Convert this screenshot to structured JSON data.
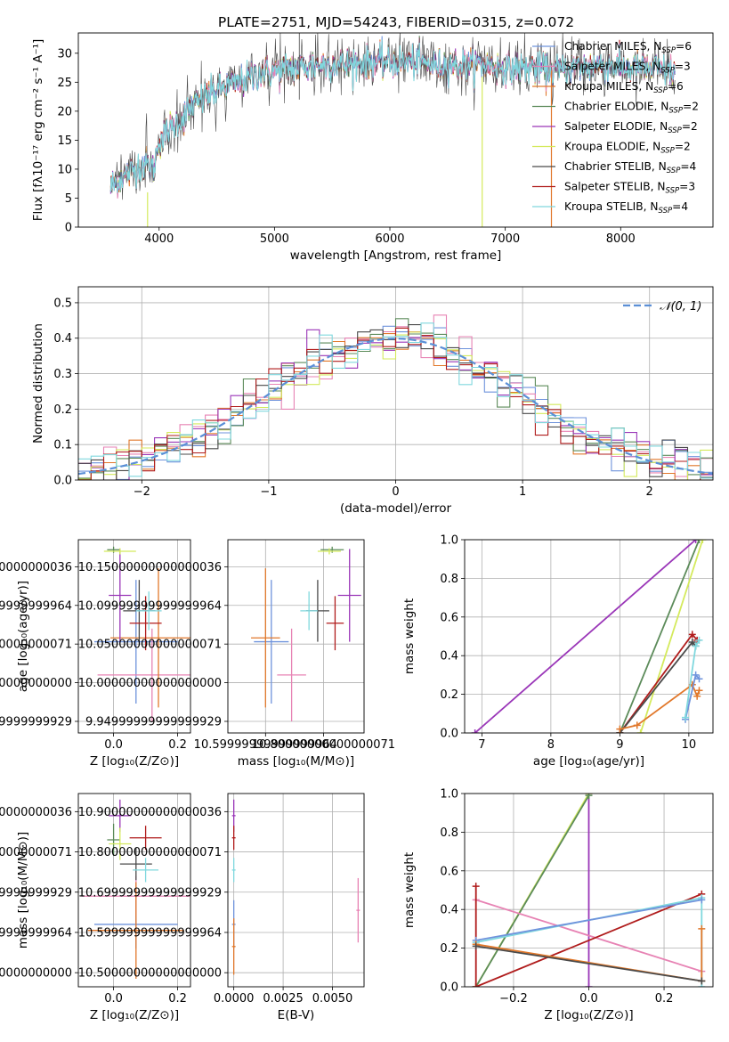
{
  "figure_title": "PLATE=2751, MJD=54243, FIBERID=0315, z=0.072",
  "model_colors": {
    "Chabrier MILES": "#6f93dc",
    "Salpeter MILES": "#e783b4",
    "Kroupa MILES": "#e1782b",
    "Chabrier ELODIE": "#5c8b5a",
    "Salpeter ELODIE": "#9a36b8",
    "Kroupa ELODIE": "#d4ea5c",
    "Chabrier STELIB": "#4a4a4a",
    "Salpeter STELIB": "#b01c1c",
    "Kroupa STELIB": "#80d8de"
  },
  "legend_entries": [
    {
      "label": "Chabrier MILES, N",
      "sub": "SSP",
      "tail": "=6",
      "key": "Chabrier MILES"
    },
    {
      "label": "Salpeter MILES, N",
      "sub": "SSP",
      "tail": "=3",
      "key": "Salpeter MILES"
    },
    {
      "label": "Kroupa MILES, N",
      "sub": "SSP",
      "tail": "=6",
      "key": "Kroupa MILES"
    },
    {
      "label": "Chabrier ELODIE, N",
      "sub": "SSP",
      "tail": "=2",
      "key": "Chabrier ELODIE"
    },
    {
      "label": "Salpeter ELODIE, N",
      "sub": "SSP",
      "tail": "=2",
      "key": "Salpeter ELODIE"
    },
    {
      "label": "Kroupa ELODIE, N",
      "sub": "SSP",
      "tail": "=2",
      "key": "Kroupa ELODIE"
    },
    {
      "label": "Chabrier STELIB, N",
      "sub": "SSP",
      "tail": "=4",
      "key": "Chabrier STELIB"
    },
    {
      "label": "Salpeter STELIB, N",
      "sub": "SSP",
      "tail": "=3",
      "key": "Salpeter STELIB"
    },
    {
      "label": "Kroupa STELIB, N",
      "sub": "SSP",
      "tail": "=4",
      "key": "Kroupa STELIB"
    }
  ],
  "chart_data": [
    {
      "id": "spectrum",
      "type": "line",
      "xlabel": "wavelength [Angstrom, rest frame]",
      "ylabel": "Flux [fλ10⁻¹⁷ erg cm⁻² s⁻¹ A⁻¹]",
      "xlim": [
        3300,
        8800
      ],
      "ylim": [
        0,
        33.5
      ],
      "xticks": [
        4000,
        5000,
        6000,
        7000,
        8000
      ],
      "yticks": [
        0,
        5,
        10,
        15,
        20,
        25,
        30
      ],
      "grid": false,
      "legend_position": "top-right",
      "spectrum_anchors": {
        "x": [
          3580,
          3700,
          3800,
          3900,
          3950,
          4000,
          4100,
          4200,
          4300,
          4400,
          4500,
          4600,
          4700,
          4800,
          4900,
          5000,
          5200,
          5400,
          5600,
          5800,
          6000,
          6200,
          6400,
          6600,
          6800,
          7000,
          7200,
          7400,
          7600,
          7800,
          8000,
          8200,
          8400,
          8470
        ],
        "y": [
          7,
          9,
          10,
          11,
          10,
          15,
          17,
          19,
          21,
          22.5,
          23.5,
          24.5,
          25,
          26,
          26.5,
          27,
          27.5,
          28,
          28,
          28.5,
          28.5,
          28.5,
          28,
          28,
          28,
          27.5,
          27.5,
          27,
          27.5,
          28,
          27.5,
          27.5,
          27,
          27
        ]
      },
      "noise_amplitude": 2.5,
      "drop_lines": [
        {
          "model": "Kroupa ELODIE",
          "x": 3900,
          "y_top": 6
        },
        {
          "model": "Kroupa ELODIE",
          "x": 6800,
          "y_top": 26
        },
        {
          "model": "Kroupa MILES",
          "x": 7400,
          "y_top": 27
        }
      ]
    },
    {
      "id": "residual-histogram",
      "type": "step",
      "xlabel": "(data-model)/error",
      "ylabel": "Normed distribution",
      "xlim": [
        -2.5,
        2.5
      ],
      "ylim": [
        0,
        0.545
      ],
      "xticks": [
        -2,
        -1,
        0,
        1,
        2
      ],
      "yticks": [
        0.0,
        0.1,
        0.2,
        0.3,
        0.4,
        0.5
      ],
      "grid": true,
      "legend_position": "top-right",
      "reference_label": "𝒩(0, 1)",
      "reference_color": "#5b8fd6",
      "bin_width": 0.1,
      "bin_start": -2.5,
      "jitter": 0.03
    },
    {
      "id": "age-vs-Z",
      "type": "errorbar",
      "xlabel": "Z [log₁₀(Z/Z⊙)]",
      "ylabel": "age  [log₁₀(age/yr)]",
      "xlim": [
        -0.11,
        0.24
      ],
      "ylim": [
        9.935,
        10.185
      ],
      "xticks": [
        0.0,
        0.2
      ],
      "yticks": [
        9.95,
        10.0,
        10.05,
        10.1,
        10.15
      ],
      "grid": true,
      "points": [
        {
          "model": "Chabrier MILES",
          "x": 0.07,
          "xerr": 0.13,
          "y": 10.053,
          "yerr": 0.08
        },
        {
          "model": "Salpeter MILES",
          "x": 0.12,
          "xerr": 0.17,
          "y": 10.01,
          "yerr": 0.06
        },
        {
          "model": "Kroupa MILES",
          "x": 0.14,
          "xerr": 0.15,
          "y": 10.058,
          "yerr": 0.09
        },
        {
          "model": "Chabrier ELODIE",
          "x": 0.0,
          "xerr": 0.02,
          "y": 10.172,
          "yerr": 0.004
        },
        {
          "model": "Salpeter ELODIE",
          "x": 0.02,
          "xerr": 0.035,
          "y": 10.113,
          "yerr": 0.06
        },
        {
          "model": "Kroupa ELODIE",
          "x": 0.02,
          "xerr": 0.05,
          "y": 10.17,
          "yerr": 0.004
        },
        {
          "model": "Chabrier STELIB",
          "x": 0.08,
          "xerr": 0.05,
          "y": 10.093,
          "yerr": 0.04
        },
        {
          "model": "Salpeter STELIB",
          "x": 0.1,
          "xerr": 0.05,
          "y": 10.077,
          "yerr": 0.035
        },
        {
          "model": "Kroupa STELIB",
          "x": 0.11,
          "xerr": 0.04,
          "y": 10.093,
          "yerr": 0.025
        }
      ]
    },
    {
      "id": "age-vs-mass",
      "type": "errorbar",
      "xlabel": "mass [log₁₀(M/M⊙)]",
      "ylabel": "",
      "xlim": [
        10.47,
        10.94
      ],
      "ylim": [
        9.935,
        10.185
      ],
      "xticks": [
        10.6,
        10.8
      ],
      "yticks": [
        9.95,
        10.0,
        10.05,
        10.1,
        10.15
      ],
      "grid": true,
      "points": [
        {
          "model": "Chabrier MILES",
          "x": 10.62,
          "xerr": 0.06,
          "y": 10.053,
          "yerr": 0.08
        },
        {
          "model": "Salpeter MILES",
          "x": 10.69,
          "xerr": 0.05,
          "y": 10.01,
          "yerr": 0.06
        },
        {
          "model": "Kroupa MILES",
          "x": 10.6,
          "xerr": 0.05,
          "y": 10.058,
          "yerr": 0.09
        },
        {
          "model": "Chabrier ELODIE",
          "x": 10.83,
          "xerr": 0.04,
          "y": 10.172,
          "yerr": 0.004
        },
        {
          "model": "Salpeter ELODIE",
          "x": 10.89,
          "xerr": 0.04,
          "y": 10.113,
          "yerr": 0.06
        },
        {
          "model": "Kroupa ELODIE",
          "x": 10.82,
          "xerr": 0.04,
          "y": 10.17,
          "yerr": 0.004
        },
        {
          "model": "Chabrier STELIB",
          "x": 10.78,
          "xerr": 0.04,
          "y": 10.093,
          "yerr": 0.04
        },
        {
          "model": "Salpeter STELIB",
          "x": 10.84,
          "xerr": 0.03,
          "y": 10.077,
          "yerr": 0.035
        },
        {
          "model": "Kroupa STELIB",
          "x": 10.75,
          "xerr": 0.03,
          "y": 10.093,
          "yerr": 0.025
        }
      ]
    },
    {
      "id": "mass-weight-vs-age",
      "type": "line",
      "xlabel": "age  [log₁₀(age/yr)]",
      "ylabel": "mass weight",
      "xlim": [
        6.75,
        10.35
      ],
      "ylim": [
        0,
        1
      ],
      "xticks": [
        7,
        8,
        9,
        10
      ],
      "yticks": [
        0.0,
        0.2,
        0.4,
        0.6,
        0.8,
        1.0
      ],
      "grid": true,
      "series": [
        {
          "model": "Salpeter ELODIE",
          "x": [
            6.9,
            10.1
          ],
          "y": [
            0.0,
            1.0
          ]
        },
        {
          "model": "Chabrier ELODIE",
          "x": [
            9.0,
            10.15
          ],
          "y": [
            0.0,
            1.0
          ]
        },
        {
          "model": "Kroupa ELODIE",
          "x": [
            9.3,
            10.2
          ],
          "y": [
            0.0,
            1.0
          ]
        },
        {
          "model": "Salpeter STELIB",
          "x": [
            9.0,
            10.05,
            10.12
          ],
          "y": [
            0.0,
            0.51,
            0.48
          ]
        },
        {
          "model": "Chabrier STELIB",
          "x": [
            9.0,
            10.05,
            10.1
          ],
          "y": [
            0.0,
            0.47,
            0.45
          ]
        },
        {
          "model": "Kroupa MILES",
          "x": [
            9.0,
            9.25,
            10.05,
            10.12,
            10.15
          ],
          "y": [
            0.02,
            0.04,
            0.25,
            0.19,
            0.22
          ]
        },
        {
          "model": "Chabrier MILES",
          "x": [
            9.95,
            10.1,
            10.15
          ],
          "y": [
            0.07,
            0.3,
            0.28
          ]
        },
        {
          "model": "Kroupa STELIB",
          "x": [
            9.95,
            10.1,
            10.15
          ],
          "y": [
            0.08,
            0.45,
            0.48
          ]
        }
      ]
    },
    {
      "id": "mass-vs-Z",
      "type": "errorbar",
      "xlabel": "Z [log₁₀(Z/Z⊙)]",
      "ylabel": "mass [log₁₀(M/M⊙)]",
      "xlim": [
        -0.11,
        0.24
      ],
      "ylim": [
        10.465,
        10.945
      ],
      "xticks": [
        0.0,
        0.2
      ],
      "yticks": [
        10.5,
        10.6,
        10.7,
        10.8,
        10.9
      ],
      "grid": true,
      "points": [
        {
          "model": "Chabrier MILES",
          "x": 0.07,
          "xerr": 0.13,
          "y": 10.62,
          "yerr": 0.06
        },
        {
          "model": "Salpeter MILES",
          "x": 0.07,
          "xerr": 0.17,
          "y": 10.69,
          "yerr": 0.05
        },
        {
          "model": "Kroupa MILES",
          "x": 0.07,
          "xerr": 0.15,
          "y": 10.605,
          "yerr": 0.12
        },
        {
          "model": "Chabrier ELODIE",
          "x": 0.0,
          "xerr": 0.02,
          "y": 10.83,
          "yerr": 0.04
        },
        {
          "model": "Salpeter ELODIE",
          "x": 0.02,
          "xerr": 0.035,
          "y": 10.89,
          "yerr": 0.04
        },
        {
          "model": "Kroupa ELODIE",
          "x": 0.02,
          "xerr": 0.035,
          "y": 10.82,
          "yerr": 0.04
        },
        {
          "model": "Chabrier STELIB",
          "x": 0.07,
          "xerr": 0.05,
          "y": 10.77,
          "yerr": 0.04
        },
        {
          "model": "Salpeter STELIB",
          "x": 0.1,
          "xerr": 0.05,
          "y": 10.835,
          "yerr": 0.03
        },
        {
          "model": "Kroupa STELIB",
          "x": 0.1,
          "xerr": 0.04,
          "y": 10.755,
          "yerr": 0.03
        }
      ]
    },
    {
      "id": "mass-vs-EBV",
      "type": "errorbar",
      "xlabel": "E(B-V)",
      "ylabel": "",
      "xlim": [
        -0.0003,
        0.0066
      ],
      "ylim": [
        10.465,
        10.945
      ],
      "xticks": [
        0.0,
        0.0025,
        0.005
      ],
      "xticklabels": [
        "0.0000",
        "0.0025",
        "0.0050"
      ],
      "yticks": [
        10.5,
        10.6,
        10.7,
        10.8,
        10.9
      ],
      "grid": true,
      "points": [
        {
          "model": "Salpeter ELODIE",
          "x": 0.0,
          "xerr": 0.0,
          "y": 10.89,
          "yerr": 0.04
        },
        {
          "model": "Salpeter STELIB",
          "x": 0.0,
          "xerr": 0.0,
          "y": 10.835,
          "yerr": 0.03
        },
        {
          "model": "Kroupa STELIB",
          "x": 0.0,
          "xerr": 0.0,
          "y": 10.755,
          "yerr": 0.03
        },
        {
          "model": "Chabrier MILES",
          "x": 0.0,
          "xerr": 0.0,
          "y": 10.62,
          "yerr": 0.06
        },
        {
          "model": "Kroupa MILES",
          "x": 0.0,
          "xerr": 0.0,
          "y": 10.565,
          "yerr": 0.07
        },
        {
          "model": "Salpeter MILES",
          "x": 0.0063,
          "xerr": 0.0,
          "y": 10.655,
          "yerr": 0.08
        }
      ]
    },
    {
      "id": "mass-weight-vs-Z",
      "type": "line",
      "xlabel": "Z [log₁₀(Z/Z⊙)]",
      "ylabel": "mass weight",
      "xlim": [
        -0.33,
        0.33
      ],
      "ylim": [
        0,
        1
      ],
      "xticks": [
        -0.2,
        0.0,
        0.2
      ],
      "yticks": [
        0.0,
        0.2,
        0.4,
        0.6,
        0.8,
        1.0
      ],
      "grid": true,
      "series": [
        {
          "model": "Salpeter ELODIE",
          "x": [
            0.0,
            0.0
          ],
          "y": [
            0.0,
            1.0
          ]
        },
        {
          "model": "Kroupa ELODIE",
          "x": [
            -0.3,
            0.0
          ],
          "y": [
            0.0,
            1.0
          ]
        },
        {
          "model": "Chabrier ELODIE",
          "x": [
            -0.3,
            0.0
          ],
          "y": [
            0.0,
            0.99
          ]
        },
        {
          "model": "Salpeter MILES",
          "x": [
            -0.3,
            0.3
          ],
          "y": [
            0.45,
            0.08
          ]
        },
        {
          "model": "Salpeter STELIB",
          "x": [
            -0.3,
            -0.3,
            0.3
          ],
          "y": [
            0.52,
            0.0,
            0.48
          ]
        },
        {
          "model": "Kroupa STELIB",
          "x": [
            -0.3,
            0.3,
            0.3
          ],
          "y": [
            0.23,
            0.46,
            0.0
          ]
        },
        {
          "model": "Chabrier MILES",
          "x": [
            -0.3,
            0.3
          ],
          "y": [
            0.24,
            0.45
          ]
        },
        {
          "model": "Kroupa MILES",
          "x": [
            -0.3,
            0.3,
            0.3
          ],
          "y": [
            0.22,
            0.03,
            0.3
          ]
        },
        {
          "model": "Chabrier STELIB",
          "x": [
            -0.3,
            0.3
          ],
          "y": [
            0.21,
            0.03
          ]
        }
      ]
    }
  ]
}
